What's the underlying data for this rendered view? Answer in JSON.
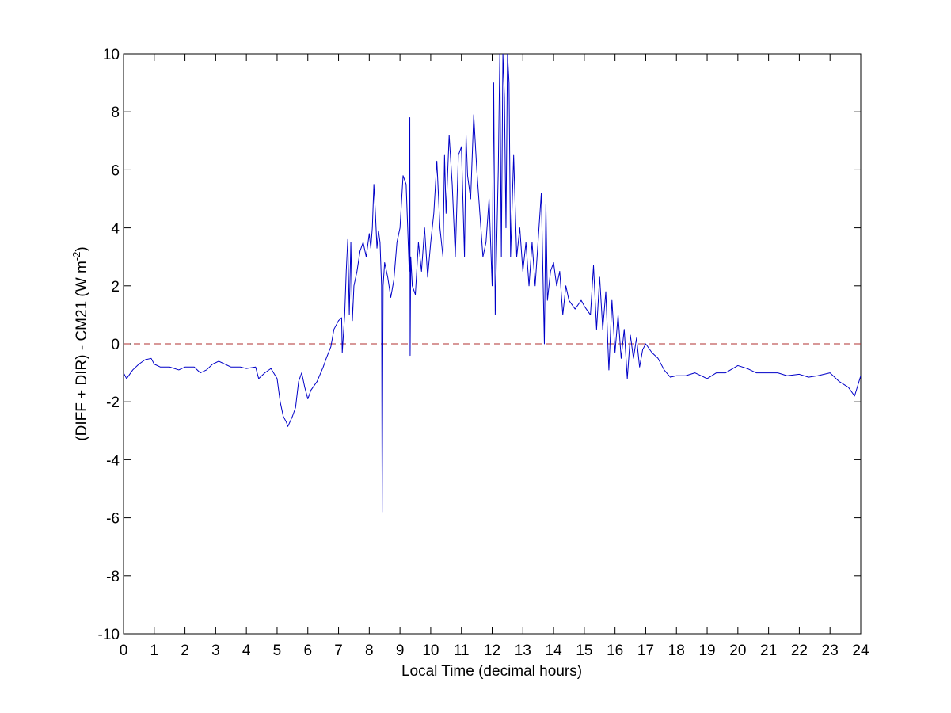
{
  "chart_data": {
    "type": "line",
    "xlabel": "Local Time (decimal hours)",
    "ylabel": {
      "text": "(DIFF + DIR) - CM21 (W m",
      "superscript": "-2",
      "suffix": ")"
    },
    "xlim": [
      0,
      24
    ],
    "ylim": [
      -10,
      10
    ],
    "xticks": [
      0,
      1,
      2,
      3,
      4,
      5,
      6,
      7,
      8,
      9,
      10,
      11,
      12,
      13,
      14,
      15,
      16,
      17,
      18,
      19,
      20,
      21,
      22,
      23,
      24
    ],
    "yticks": [
      -10,
      -8,
      -6,
      -4,
      -2,
      0,
      2,
      4,
      6,
      8,
      10
    ],
    "grid": false,
    "reference_line": {
      "y": 0,
      "color": "#b03030",
      "style": "dashed"
    },
    "x": [
      0,
      0.1,
      0.3,
      0.5,
      0.7,
      0.9,
      1.0,
      1.2,
      1.5,
      1.8,
      2.0,
      2.3,
      2.5,
      2.7,
      2.9,
      3.1,
      3.3,
      3.5,
      3.8,
      4.0,
      4.3,
      4.4,
      4.6,
      4.8,
      5.0,
      5.1,
      5.2,
      5.3,
      5.35,
      5.5,
      5.6,
      5.7,
      5.8,
      5.9,
      6.0,
      6.1,
      6.3,
      6.5,
      6.6,
      6.75,
      6.85,
      7.0,
      7.1,
      7.12,
      7.2,
      7.25,
      7.3,
      7.35,
      7.4,
      7.45,
      7.5,
      7.6,
      7.7,
      7.8,
      7.9,
      8.0,
      8.05,
      8.1,
      8.15,
      8.2,
      8.25,
      8.3,
      8.35,
      8.4,
      8.42,
      8.45,
      8.5,
      8.6,
      8.7,
      8.8,
      8.9,
      9.0,
      9.1,
      9.2,
      9.3,
      9.32,
      9.33,
      9.35,
      9.4,
      9.5,
      9.6,
      9.7,
      9.8,
      9.9,
      10.0,
      10.1,
      10.2,
      10.3,
      10.4,
      10.45,
      10.5,
      10.6,
      10.7,
      10.8,
      10.9,
      11.0,
      11.1,
      11.15,
      11.2,
      11.3,
      11.4,
      11.5,
      11.6,
      11.7,
      11.8,
      11.9,
      12.0,
      12.05,
      12.1,
      12.2,
      12.25,
      12.3,
      12.35,
      12.4,
      12.45,
      12.5,
      12.55,
      12.6,
      12.7,
      12.8,
      12.9,
      13.0,
      13.1,
      13.2,
      13.3,
      13.4,
      13.5,
      13.6,
      13.7,
      13.75,
      13.8,
      13.9,
      14.0,
      14.1,
      14.2,
      14.3,
      14.4,
      14.5,
      14.7,
      14.9,
      15.0,
      15.2,
      15.3,
      15.4,
      15.5,
      15.6,
      15.7,
      15.8,
      15.9,
      16.0,
      16.1,
      16.2,
      16.3,
      16.4,
      16.5,
      16.6,
      16.7,
      16.8,
      16.9,
      17.0,
      17.2,
      17.4,
      17.6,
      17.8,
      18.0,
      18.3,
      18.6,
      19.0,
      19.3,
      19.6,
      20.0,
      20.3,
      20.6,
      21.0,
      21.3,
      21.6,
      22.0,
      22.3,
      22.6,
      23.0,
      23.3,
      23.6,
      23.8,
      24.0
    ],
    "series": [
      {
        "color": "#0000c8",
        "values": [
          -1.0,
          -1.2,
          -0.9,
          -0.7,
          -0.55,
          -0.5,
          -0.7,
          -0.8,
          -0.8,
          -0.9,
          -0.8,
          -0.8,
          -1.0,
          -0.9,
          -0.7,
          -0.6,
          -0.7,
          -0.8,
          -0.8,
          -0.85,
          -0.8,
          -1.2,
          -1.0,
          -0.85,
          -1.2,
          -2.0,
          -2.5,
          -2.7,
          -2.85,
          -2.5,
          -2.2,
          -1.3,
          -1.0,
          -1.5,
          -1.9,
          -1.6,
          -1.3,
          -0.8,
          -0.5,
          -0.1,
          0.5,
          0.8,
          0.9,
          -0.3,
          1.0,
          2.5,
          3.6,
          1.0,
          3.5,
          0.8,
          2.0,
          2.5,
          3.2,
          3.5,
          3.0,
          3.8,
          3.3,
          4.0,
          5.5,
          4.5,
          3.3,
          3.9,
          3.5,
          2.0,
          -5.8,
          2.0,
          2.8,
          2.3,
          1.6,
          2.2,
          3.5,
          4.0,
          5.8,
          5.5,
          2.5,
          7.8,
          -0.4,
          3.0,
          2.0,
          1.7,
          3.5,
          2.5,
          4.0,
          2.3,
          3.5,
          4.5,
          6.3,
          4.0,
          3.0,
          6.5,
          4.5,
          7.2,
          5.5,
          3.0,
          6.5,
          6.8,
          3.0,
          7.2,
          5.8,
          5.0,
          7.9,
          6.0,
          4.5,
          3.0,
          3.5,
          5.0,
          2.0,
          9.0,
          1.0,
          6.0,
          10.0,
          3.0,
          10.0,
          8.5,
          4.0,
          10.0,
          9.0,
          3.0,
          6.5,
          3.0,
          4.0,
          2.5,
          3.5,
          2.0,
          3.5,
          2.0,
          3.6,
          5.2,
          0.0,
          4.8,
          1.5,
          2.5,
          2.8,
          2.0,
          2.5,
          1.0,
          2.0,
          1.5,
          1.2,
          1.5,
          1.3,
          1.0,
          2.7,
          0.5,
          2.3,
          0.5,
          1.8,
          -0.9,
          1.5,
          -0.3,
          1.0,
          -0.5,
          0.5,
          -1.2,
          0.3,
          -0.5,
          0.2,
          -0.8,
          -0.2,
          0.0,
          -0.3,
          -0.5,
          -0.9,
          -1.15,
          -1.1,
          -1.1,
          -1.0,
          -1.2,
          -1.0,
          -1.0,
          -0.75,
          -0.85,
          -1.0,
          -1.0,
          -1.0,
          -1.1,
          -1.05,
          -1.15,
          -1.1,
          -1.0,
          -1.3,
          -1.5,
          -1.8,
          -1.1
        ]
      }
    ]
  }
}
